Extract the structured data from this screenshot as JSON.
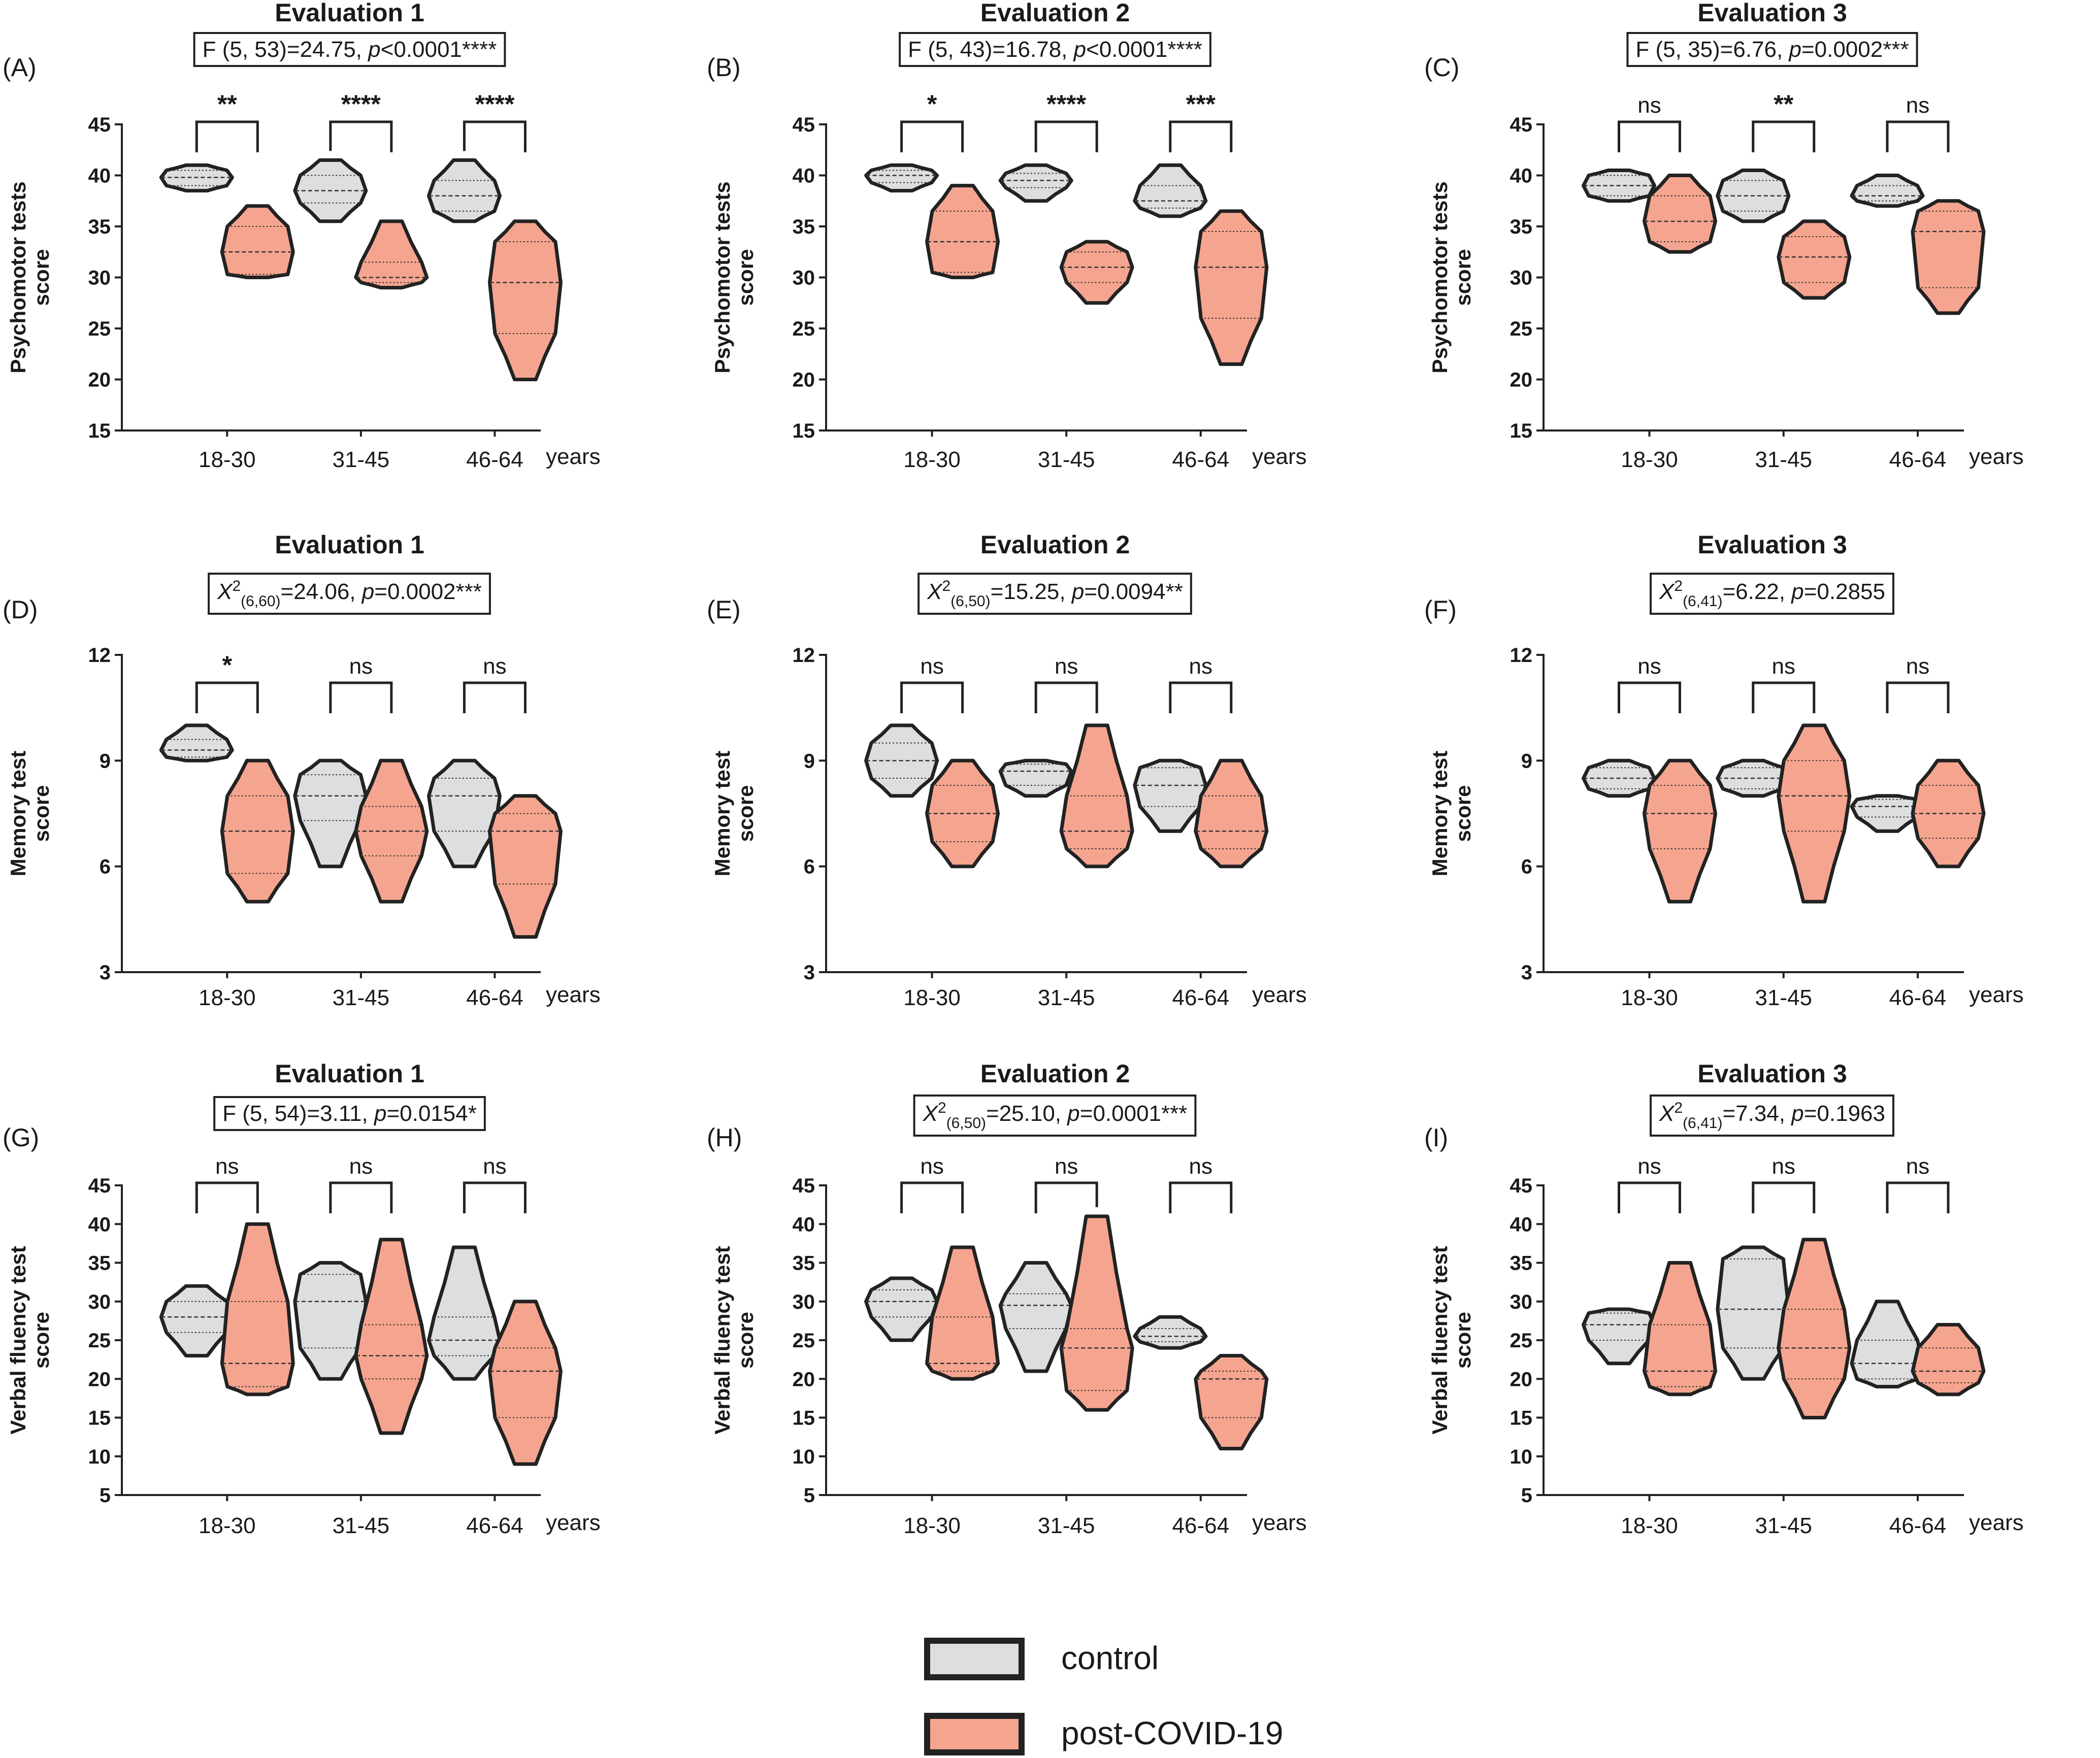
{
  "colors": {
    "control": "#dcdedf",
    "post_covid": "#f5a58f",
    "outline": "#222222"
  },
  "legend": {
    "items": [
      {
        "key": "control",
        "label": "control"
      },
      {
        "key": "post_covid",
        "label": "post-COVID-19"
      }
    ]
  },
  "chart_data": [
    {
      "type": "violin",
      "label": "(A)",
      "title": "Evaluation 1",
      "stat_parts": [
        {
          "t": "F (5, 53)=24.75, "
        },
        {
          "t": "p",
          "i": true
        },
        {
          "t": "<0.0001****"
        }
      ],
      "ylabel": [
        "Psychomotor tests",
        "score"
      ],
      "ylim": [
        15,
        45
      ],
      "yticks": [
        15,
        20,
        25,
        30,
        35,
        40,
        45
      ],
      "categories": [
        "18-30",
        "31-45",
        "46-64"
      ],
      "unit": "years",
      "significance": [
        "**",
        "****",
        "****"
      ],
      "series": [
        {
          "name": "control",
          "values": [
            {
              "min": 38.5,
              "max": 41,
              "median": 39.8,
              "q1": 39,
              "q3": 40.5
            },
            {
              "min": 35.5,
              "max": 41.5,
              "median": 38.5,
              "q1": 37.3,
              "q3": 40
            },
            {
              "min": 35.5,
              "max": 41.5,
              "median": 38,
              "q1": 36.5,
              "q3": 39.5
            }
          ]
        },
        {
          "name": "post-COVID-19",
          "values": [
            {
              "min": 30,
              "max": 37,
              "median": 32.5,
              "q1": 30.3,
              "q3": 35
            },
            {
              "min": 29,
              "max": 35.5,
              "median": 30,
              "q1": 29.5,
              "q3": 31.5
            },
            {
              "min": 20,
              "max": 35.5,
              "median": 29.5,
              "q1": 24.5,
              "q3": 33.5
            }
          ]
        }
      ]
    },
    {
      "type": "violin",
      "label": "(B)",
      "title": "Evaluation 2",
      "stat_parts": [
        {
          "t": "F (5, 43)=16.78, "
        },
        {
          "t": "p",
          "i": true
        },
        {
          "t": "<0.0001****"
        }
      ],
      "ylabel": [
        "Psychomotor tests",
        "score"
      ],
      "ylim": [
        15,
        45
      ],
      "yticks": [
        15,
        20,
        25,
        30,
        35,
        40,
        45
      ],
      "categories": [
        "18-30",
        "31-45",
        "46-64"
      ],
      "unit": "years",
      "significance": [
        "*",
        "****",
        "***"
      ],
      "series": [
        {
          "name": "control",
          "values": [
            {
              "min": 38.5,
              "max": 41,
              "median": 40,
              "q1": 39.3,
              "q3": 40.5
            },
            {
              "min": 37.5,
              "max": 41,
              "median": 39.5,
              "q1": 38.8,
              "q3": 40.2
            },
            {
              "min": 36,
              "max": 41,
              "median": 37.5,
              "q1": 36.8,
              "q3": 39
            }
          ]
        },
        {
          "name": "post-COVID-19",
          "values": [
            {
              "min": 30,
              "max": 39,
              "median": 33.5,
              "q1": 30.5,
              "q3": 36.5
            },
            {
              "min": 27.5,
              "max": 33.5,
              "median": 31,
              "q1": 29.5,
              "q3": 32.5
            },
            {
              "min": 21.5,
              "max": 36.5,
              "median": 31,
              "q1": 26,
              "q3": 34.5
            }
          ]
        }
      ]
    },
    {
      "type": "violin",
      "label": "(C)",
      "title": "Evaluation 3",
      "stat_parts": [
        {
          "t": "F (5, 35)=6.76, "
        },
        {
          "t": "p",
          "i": true
        },
        {
          "t": "=0.0002***"
        }
      ],
      "ylabel": [
        "Psychomotor tests",
        "score"
      ],
      "ylim": [
        15,
        45
      ],
      "yticks": [
        15,
        20,
        25,
        30,
        35,
        40,
        45
      ],
      "categories": [
        "18-30",
        "31-45",
        "46-64"
      ],
      "unit": "years",
      "significance": [
        "ns",
        "**",
        "ns"
      ],
      "series": [
        {
          "name": "control",
          "values": [
            {
              "min": 37.5,
              "max": 40.5,
              "median": 39,
              "q1": 38,
              "q3": 40
            },
            {
              "min": 35.5,
              "max": 40.5,
              "median": 38,
              "q1": 36.5,
              "q3": 39.5
            },
            {
              "min": 37,
              "max": 40,
              "median": 38,
              "q1": 37.5,
              "q3": 39
            }
          ]
        },
        {
          "name": "post-COVID-19",
          "values": [
            {
              "min": 32.5,
              "max": 40,
              "median": 35.5,
              "q1": 33.5,
              "q3": 38
            },
            {
              "min": 28,
              "max": 35.5,
              "median": 32,
              "q1": 29.5,
              "q3": 34
            },
            {
              "min": 26.5,
              "max": 37.5,
              "median": 34.5,
              "q1": 29,
              "q3": 36.5
            }
          ]
        }
      ]
    },
    {
      "type": "violin",
      "label": "(D)",
      "title": "Evaluation 1",
      "stat_parts": [
        {
          "t": "X",
          "i": true
        },
        {
          "t": "2",
          "sup": true
        },
        {
          "t": "(6,60)",
          "sub": true
        },
        {
          "t": "=24.06, "
        },
        {
          "t": "p",
          "i": true
        },
        {
          "t": "=0.0002***"
        }
      ],
      "ylabel": [
        "Memory test",
        "score"
      ],
      "ylim": [
        3,
        12
      ],
      "yticks": [
        3,
        6,
        9,
        12
      ],
      "categories": [
        "18-30",
        "31-45",
        "46-64"
      ],
      "unit": "years",
      "significance": [
        "*",
        "ns",
        "ns"
      ],
      "series": [
        {
          "name": "control",
          "values": [
            {
              "min": 9,
              "max": 10,
              "median": 9.3,
              "q1": 9.1,
              "q3": 9.6
            },
            {
              "min": 6,
              "max": 9,
              "median": 8,
              "q1": 7.3,
              "q3": 8.6
            },
            {
              "min": 6,
              "max": 9,
              "median": 8,
              "q1": 7,
              "q3": 8.5
            }
          ]
        },
        {
          "name": "post-COVID-19",
          "values": [
            {
              "min": 5,
              "max": 9,
              "median": 7,
              "q1": 5.8,
              "q3": 8
            },
            {
              "min": 5,
              "max": 9,
              "median": 7,
              "q1": 6.3,
              "q3": 7.7
            },
            {
              "min": 4,
              "max": 8,
              "median": 7,
              "q1": 5.5,
              "q3": 7.5
            }
          ]
        }
      ]
    },
    {
      "type": "violin",
      "label": "(E)",
      "title": "Evaluation 2",
      "stat_parts": [
        {
          "t": "X",
          "i": true
        },
        {
          "t": "2",
          "sup": true
        },
        {
          "t": "(6,50)",
          "sub": true
        },
        {
          "t": "=15.25, "
        },
        {
          "t": "p",
          "i": true
        },
        {
          "t": "=0.0094**"
        }
      ],
      "ylabel": [
        "Memory test",
        "score"
      ],
      "ylim": [
        3,
        12
      ],
      "yticks": [
        3,
        6,
        9,
        12
      ],
      "categories": [
        "18-30",
        "31-45",
        "46-64"
      ],
      "unit": "years",
      "significance": [
        "ns",
        "ns",
        "ns"
      ],
      "series": [
        {
          "name": "control",
          "values": [
            {
              "min": 8,
              "max": 10,
              "median": 9,
              "q1": 8.5,
              "q3": 9.5
            },
            {
              "min": 8,
              "max": 9,
              "median": 8.7,
              "q1": 8.3,
              "q3": 8.9
            },
            {
              "min": 7,
              "max": 9,
              "median": 8.3,
              "q1": 7.7,
              "q3": 8.8
            }
          ]
        },
        {
          "name": "post-COVID-19",
          "values": [
            {
              "min": 6,
              "max": 9,
              "median": 7.5,
              "q1": 6.7,
              "q3": 8.3
            },
            {
              "min": 6,
              "max": 10,
              "median": 7,
              "q1": 6.5,
              "q3": 8
            },
            {
              "min": 6,
              "max": 9,
              "median": 7,
              "q1": 6.5,
              "q3": 8
            }
          ]
        }
      ]
    },
    {
      "type": "violin",
      "label": "(F)",
      "title": "Evaluation 3",
      "stat_parts": [
        {
          "t": "X",
          "i": true
        },
        {
          "t": "2",
          "sup": true
        },
        {
          "t": "(6,41)",
          "sub": true
        },
        {
          "t": "=6.22, "
        },
        {
          "t": "p",
          "i": true
        },
        {
          "t": "=0.2855"
        }
      ],
      "ylabel": [
        "Memory test",
        "score"
      ],
      "ylim": [
        3,
        12
      ],
      "yticks": [
        3,
        6,
        9,
        12
      ],
      "categories": [
        "18-30",
        "31-45",
        "46-64"
      ],
      "unit": "years",
      "significance": [
        "ns",
        "ns",
        "ns"
      ],
      "series": [
        {
          "name": "control",
          "values": [
            {
              "min": 8,
              "max": 9,
              "median": 8.5,
              "q1": 8.2,
              "q3": 8.8
            },
            {
              "min": 8,
              "max": 9,
              "median": 8.5,
              "q1": 8.2,
              "q3": 8.8
            },
            {
              "min": 7,
              "max": 8,
              "median": 7.7,
              "q1": 7.4,
              "q3": 7.9
            }
          ]
        },
        {
          "name": "post-COVID-19",
          "values": [
            {
              "min": 5,
              "max": 9,
              "median": 7.5,
              "q1": 6.5,
              "q3": 8.3
            },
            {
              "min": 5,
              "max": 10,
              "median": 8,
              "q1": 7,
              "q3": 9
            },
            {
              "min": 6,
              "max": 9,
              "median": 7.5,
              "q1": 6.8,
              "q3": 8.3
            }
          ]
        }
      ]
    },
    {
      "type": "violin",
      "label": "(G)",
      "title": "Evaluation 1",
      "stat_parts": [
        {
          "t": "F (5, 54)=3.11, "
        },
        {
          "t": "p",
          "i": true
        },
        {
          "t": "=0.0154*"
        }
      ],
      "ylabel": [
        "Verbal fluency test",
        "score"
      ],
      "ylim": [
        5,
        45
      ],
      "yticks": [
        5,
        10,
        15,
        20,
        25,
        30,
        35,
        40,
        45
      ],
      "categories": [
        "18-30",
        "31-45",
        "46-64"
      ],
      "unit": "years",
      "significance": [
        "ns",
        "ns",
        "ns"
      ],
      "series": [
        {
          "name": "control",
          "values": [
            {
              "min": 23,
              "max": 32,
              "median": 28,
              "q1": 26,
              "q3": 30
            },
            {
              "min": 20,
              "max": 35,
              "median": 30,
              "q1": 24,
              "q3": 33.5
            },
            {
              "min": 20,
              "max": 37,
              "median": 25,
              "q1": 23,
              "q3": 28
            }
          ]
        },
        {
          "name": "post-COVID-19",
          "values": [
            {
              "min": 18,
              "max": 40,
              "median": 22,
              "q1": 19,
              "q3": 30
            },
            {
              "min": 13,
              "max": 38,
              "median": 23,
              "q1": 20,
              "q3": 27
            },
            {
              "min": 9,
              "max": 30,
              "median": 21,
              "q1": 15,
              "q3": 24
            }
          ]
        }
      ]
    },
    {
      "type": "violin",
      "label": "(H)",
      "title": "Evaluation 2",
      "stat_parts": [
        {
          "t": "X",
          "i": true
        },
        {
          "t": "2",
          "sup": true
        },
        {
          "t": "(6,50)",
          "sub": true
        },
        {
          "t": "=25.10, "
        },
        {
          "t": "p",
          "i": true
        },
        {
          "t": "=0.0001***"
        }
      ],
      "ylabel": [
        "Verbal fluency test",
        "score"
      ],
      "ylim": [
        5,
        45
      ],
      "yticks": [
        5,
        10,
        15,
        20,
        25,
        30,
        35,
        40,
        45
      ],
      "categories": [
        "18-30",
        "31-45",
        "46-64"
      ],
      "unit": "years",
      "significance": [
        "ns",
        "ns",
        "ns"
      ],
      "series": [
        {
          "name": "control",
          "values": [
            {
              "min": 25,
              "max": 33,
              "median": 30,
              "q1": 28,
              "q3": 31.5
            },
            {
              "min": 21,
              "max": 35,
              "median": 29.5,
              "q1": 26.5,
              "q3": 31
            },
            {
              "min": 24,
              "max": 28,
              "median": 25.5,
              "q1": 24.8,
              "q3": 26.5
            }
          ]
        },
        {
          "name": "post-COVID-19",
          "values": [
            {
              "min": 20,
              "max": 37,
              "median": 22,
              "q1": 21,
              "q3": 28
            },
            {
              "min": 16,
              "max": 41,
              "median": 24,
              "q1": 18.5,
              "q3": 26.5
            },
            {
              "min": 11,
              "max": 23,
              "median": 20,
              "q1": 15,
              "q3": 21
            }
          ]
        }
      ]
    },
    {
      "type": "violin",
      "label": "(I)",
      "title": "Evaluation 3",
      "stat_parts": [
        {
          "t": "X",
          "i": true
        },
        {
          "t": "2",
          "sup": true
        },
        {
          "t": "(6,41)",
          "sub": true
        },
        {
          "t": "=7.34, "
        },
        {
          "t": "p",
          "i": true
        },
        {
          "t": "=0.1963"
        }
      ],
      "ylabel": [
        "Verbal fluency test",
        "score"
      ],
      "ylim": [
        5,
        45
      ],
      "yticks": [
        5,
        10,
        15,
        20,
        25,
        30,
        35,
        40,
        45
      ],
      "categories": [
        "18-30",
        "31-45",
        "46-64"
      ],
      "unit": "years",
      "significance": [
        "ns",
        "ns",
        "ns"
      ],
      "series": [
        {
          "name": "control",
          "values": [
            {
              "min": 22,
              "max": 29,
              "median": 27,
              "q1": 25,
              "q3": 28.5
            },
            {
              "min": 20,
              "max": 37,
              "median": 29,
              "q1": 24,
              "q3": 35.5
            },
            {
              "min": 19,
              "max": 30,
              "median": 22,
              "q1": 20,
              "q3": 25
            }
          ]
        },
        {
          "name": "post-COVID-19",
          "values": [
            {
              "min": 18,
              "max": 35,
              "median": 21,
              "q1": 19,
              "q3": 27
            },
            {
              "min": 15,
              "max": 38,
              "median": 24,
              "q1": 20,
              "q3": 29
            },
            {
              "min": 18,
              "max": 27,
              "median": 21,
              "q1": 19.5,
              "q3": 24
            }
          ]
        }
      ]
    }
  ]
}
